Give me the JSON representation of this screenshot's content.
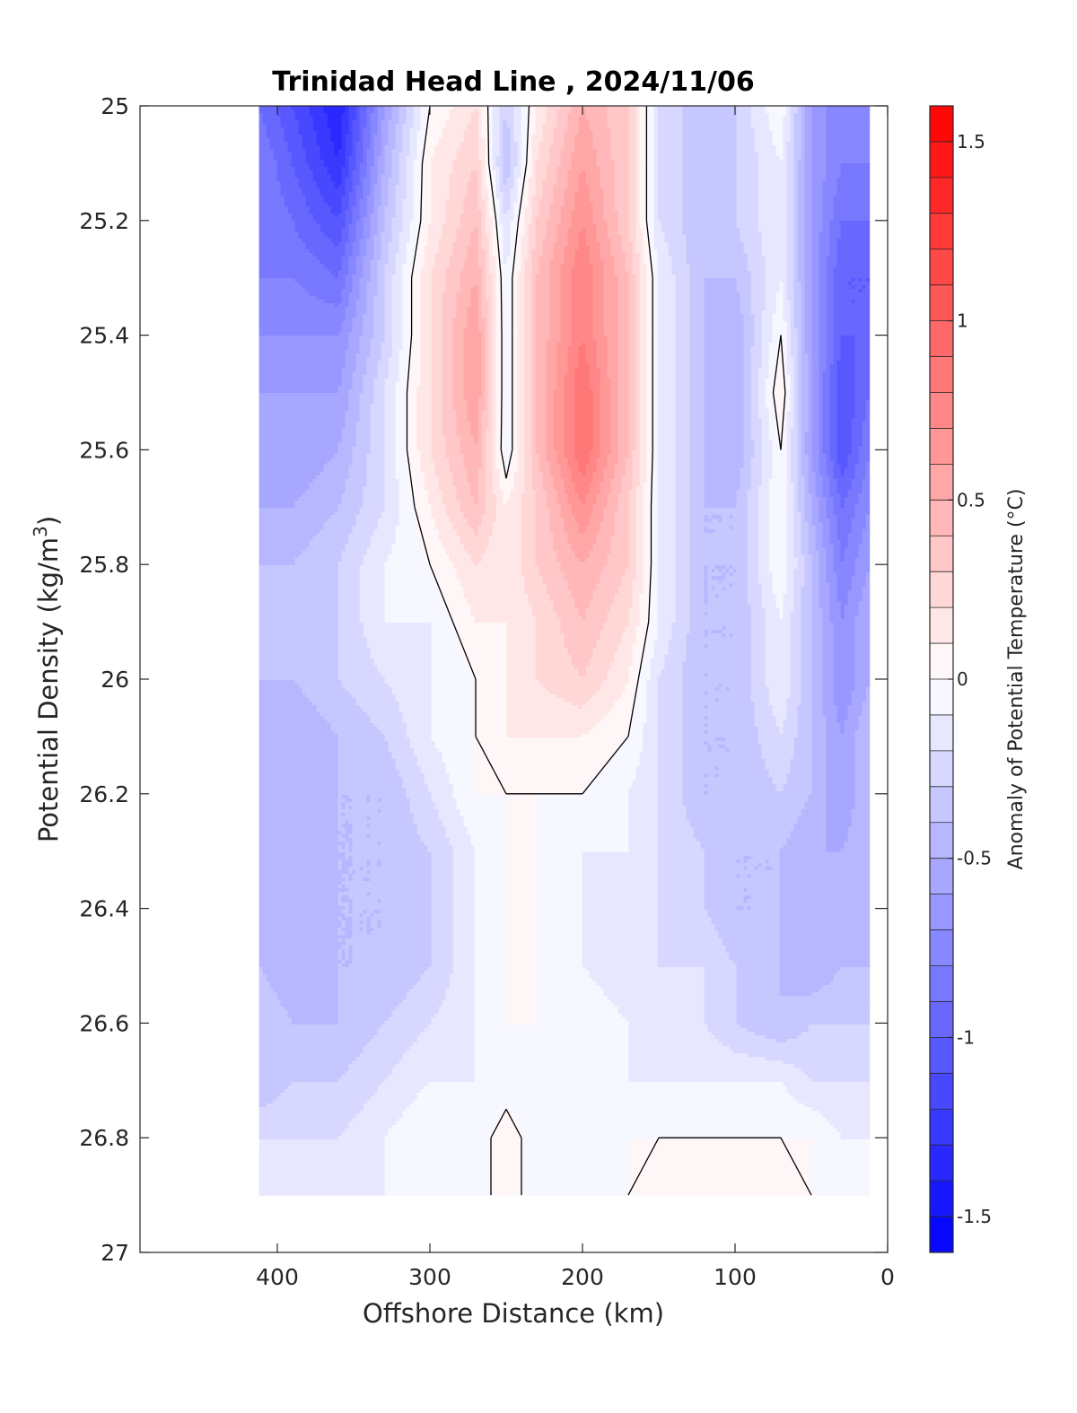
{
  "chart_data": {
    "type": "heatmap",
    "subtype": "filled-contour",
    "title": "Trinidad Head Line , 2024/11/06",
    "xlabel": "Offshore Distance (km)",
    "ylabel_main": "Potential Density (kg/m",
    "ylabel_sup": "3",
    "ylabel_close": ")",
    "colorbar_label": "Anomaly of Potential Temperature (°C)",
    "xlim": [
      490,
      0
    ],
    "x_reversed": true,
    "ylim": [
      25,
      27
    ],
    "y_reversed": true,
    "x_ticks": [
      "400",
      "300",
      "200",
      "100",
      "0"
    ],
    "x_tick_values": [
      400,
      300,
      200,
      100,
      0
    ],
    "y_ticks": [
      "25",
      "25.2",
      "25.4",
      "25.6",
      "25.8",
      "26",
      "26.2",
      "26.4",
      "26.6",
      "26.8",
      "27"
    ],
    "y_tick_values": [
      25,
      25.2,
      25.4,
      25.6,
      25.8,
      26,
      26.2,
      26.4,
      26.6,
      26.8,
      27
    ],
    "colorbar_range": [
      -1.6,
      1.6
    ],
    "colorbar_step": 0.1,
    "colorbar_ticks": [
      "1.5",
      "1",
      "0.5",
      "0",
      "-0.5",
      "-1",
      "-1.5"
    ],
    "colorbar_tick_values": [
      1.5,
      1,
      0.5,
      0,
      -0.5,
      -1,
      -1.5
    ],
    "colormap": {
      "negative": "#0000ff",
      "zero": "#ffffff",
      "positive": "#ff0000"
    },
    "data_extent": {
      "x": [
        412,
        12
      ],
      "y": [
        25,
        26.9
      ]
    },
    "grid": {
      "x": [
        412,
        390,
        360,
        330,
        300,
        270,
        250,
        230,
        200,
        170,
        150,
        120,
        100,
        70,
        50,
        30,
        12
      ],
      "y": [
        25.0,
        25.1,
        25.2,
        25.3,
        25.4,
        25.5,
        25.6,
        25.7,
        25.8,
        25.9,
        26.0,
        26.1,
        26.2,
        26.3,
        26.4,
        26.5,
        26.6,
        26.7,
        26.8,
        26.9
      ],
      "values": [
        [
          -0.9,
          -1.1,
          -1.4,
          -0.6,
          0.0,
          0.2,
          -0.3,
          0.1,
          0.5,
          0.3,
          -0.2,
          -0.4,
          -0.3,
          0.0,
          -0.6,
          -0.8,
          -0.7
        ],
        [
          -0.8,
          -1.0,
          -1.3,
          -0.5,
          0.1,
          0.3,
          -0.4,
          0.2,
          0.6,
          0.3,
          -0.2,
          -0.4,
          -0.3,
          -0.1,
          -0.6,
          -0.8,
          -0.8
        ],
        [
          -0.8,
          -0.9,
          -1.1,
          -0.4,
          0.1,
          0.4,
          -0.2,
          0.3,
          0.7,
          0.3,
          -0.2,
          -0.4,
          -0.3,
          -0.1,
          -0.6,
          -0.9,
          -0.9
        ],
        [
          -0.8,
          -0.8,
          -0.9,
          -0.3,
          0.2,
          0.5,
          -0.1,
          0.4,
          0.8,
          0.4,
          -0.1,
          -0.4,
          -0.4,
          -0.1,
          -0.6,
          -1.0,
          -1.0
        ],
        [
          -0.7,
          -0.7,
          -0.7,
          -0.3,
          0.2,
          0.6,
          -0.1,
          0.4,
          0.8,
          0.4,
          -0.1,
          -0.4,
          -0.5,
          0.0,
          -0.6,
          -1.0,
          -1.0
        ],
        [
          -0.6,
          -0.6,
          -0.6,
          -0.2,
          0.2,
          0.6,
          -0.1,
          0.4,
          0.9,
          0.4,
          -0.1,
          -0.4,
          -0.5,
          0.1,
          -0.6,
          -1.1,
          -0.9
        ],
        [
          -0.5,
          -0.6,
          -0.5,
          -0.2,
          0.2,
          0.5,
          -0.1,
          0.4,
          0.9,
          0.4,
          -0.1,
          -0.4,
          -0.5,
          0.0,
          -0.6,
          -1.1,
          -0.8
        ],
        [
          -0.5,
          -0.5,
          -0.4,
          -0.2,
          0.1,
          0.4,
          0.1,
          0.3,
          0.7,
          0.3,
          -0.1,
          -0.4,
          -0.4,
          0.0,
          -0.5,
          -0.9,
          -0.7
        ],
        [
          -0.4,
          -0.4,
          -0.3,
          -0.1,
          0.0,
          0.2,
          0.1,
          0.3,
          0.5,
          0.3,
          -0.1,
          -0.4,
          -0.4,
          0.0,
          -0.4,
          -0.8,
          -0.6
        ],
        [
          -0.4,
          -0.3,
          -0.3,
          -0.1,
          -0.1,
          0.1,
          0.1,
          0.2,
          0.4,
          0.2,
          -0.1,
          -0.4,
          -0.4,
          -0.1,
          -0.4,
          -0.7,
          -0.5
        ],
        [
          -0.4,
          -0.4,
          -0.3,
          -0.2,
          -0.1,
          0.0,
          0.1,
          0.2,
          0.3,
          0.1,
          -0.2,
          -0.4,
          -0.4,
          -0.1,
          -0.4,
          -0.7,
          -0.5
        ],
        [
          -0.4,
          -0.5,
          -0.4,
          -0.3,
          -0.1,
          0.0,
          0.1,
          0.1,
          0.1,
          0.0,
          -0.2,
          -0.4,
          -0.4,
          -0.2,
          -0.4,
          -0.6,
          -0.4
        ],
        [
          -0.4,
          -0.5,
          -0.4,
          -0.4,
          -0.2,
          0.0,
          0.0,
          0.0,
          0.0,
          -0.1,
          -0.2,
          -0.4,
          -0.4,
          -0.3,
          -0.4,
          -0.6,
          -0.4
        ],
        [
          -0.4,
          -0.5,
          -0.4,
          -0.4,
          -0.3,
          -0.1,
          0.0,
          0.0,
          -0.1,
          -0.1,
          -0.2,
          -0.3,
          -0.4,
          -0.4,
          -0.5,
          -0.5,
          -0.4
        ],
        [
          -0.4,
          -0.5,
          -0.4,
          -0.4,
          -0.3,
          -0.1,
          0.0,
          0.0,
          -0.1,
          -0.2,
          -0.2,
          -0.3,
          -0.4,
          -0.4,
          -0.5,
          -0.5,
          -0.4
        ],
        [
          -0.4,
          -0.5,
          -0.4,
          -0.4,
          -0.3,
          -0.1,
          0.0,
          0.0,
          -0.1,
          -0.2,
          -0.2,
          -0.2,
          -0.3,
          -0.4,
          -0.5,
          -0.4,
          -0.4
        ],
        [
          -0.3,
          -0.4,
          -0.4,
          -0.3,
          -0.2,
          -0.1,
          0.0,
          0.0,
          0.0,
          -0.1,
          -0.2,
          -0.2,
          -0.3,
          -0.4,
          -0.3,
          -0.3,
          -0.3
        ],
        [
          -0.4,
          -0.3,
          -0.3,
          -0.2,
          -0.1,
          -0.1,
          -0.1,
          0.0,
          -0.1,
          -0.1,
          -0.1,
          -0.1,
          -0.1,
          -0.1,
          -0.2,
          -0.2,
          -0.2
        ],
        [
          -0.2,
          -0.2,
          -0.2,
          -0.1,
          0.0,
          -0.1,
          0.1,
          -0.1,
          -0.1,
          0.0,
          0.0,
          0.0,
          0.0,
          0.0,
          0.0,
          -0.1,
          -0.1
        ],
        [
          -0.2,
          -0.2,
          -0.1,
          -0.1,
          0.0,
          -0.1,
          0.1,
          -0.1,
          -0.1,
          0.0,
          0.1,
          0.1,
          0.1,
          0.1,
          0.0,
          0.0,
          0.0
        ]
      ]
    }
  }
}
